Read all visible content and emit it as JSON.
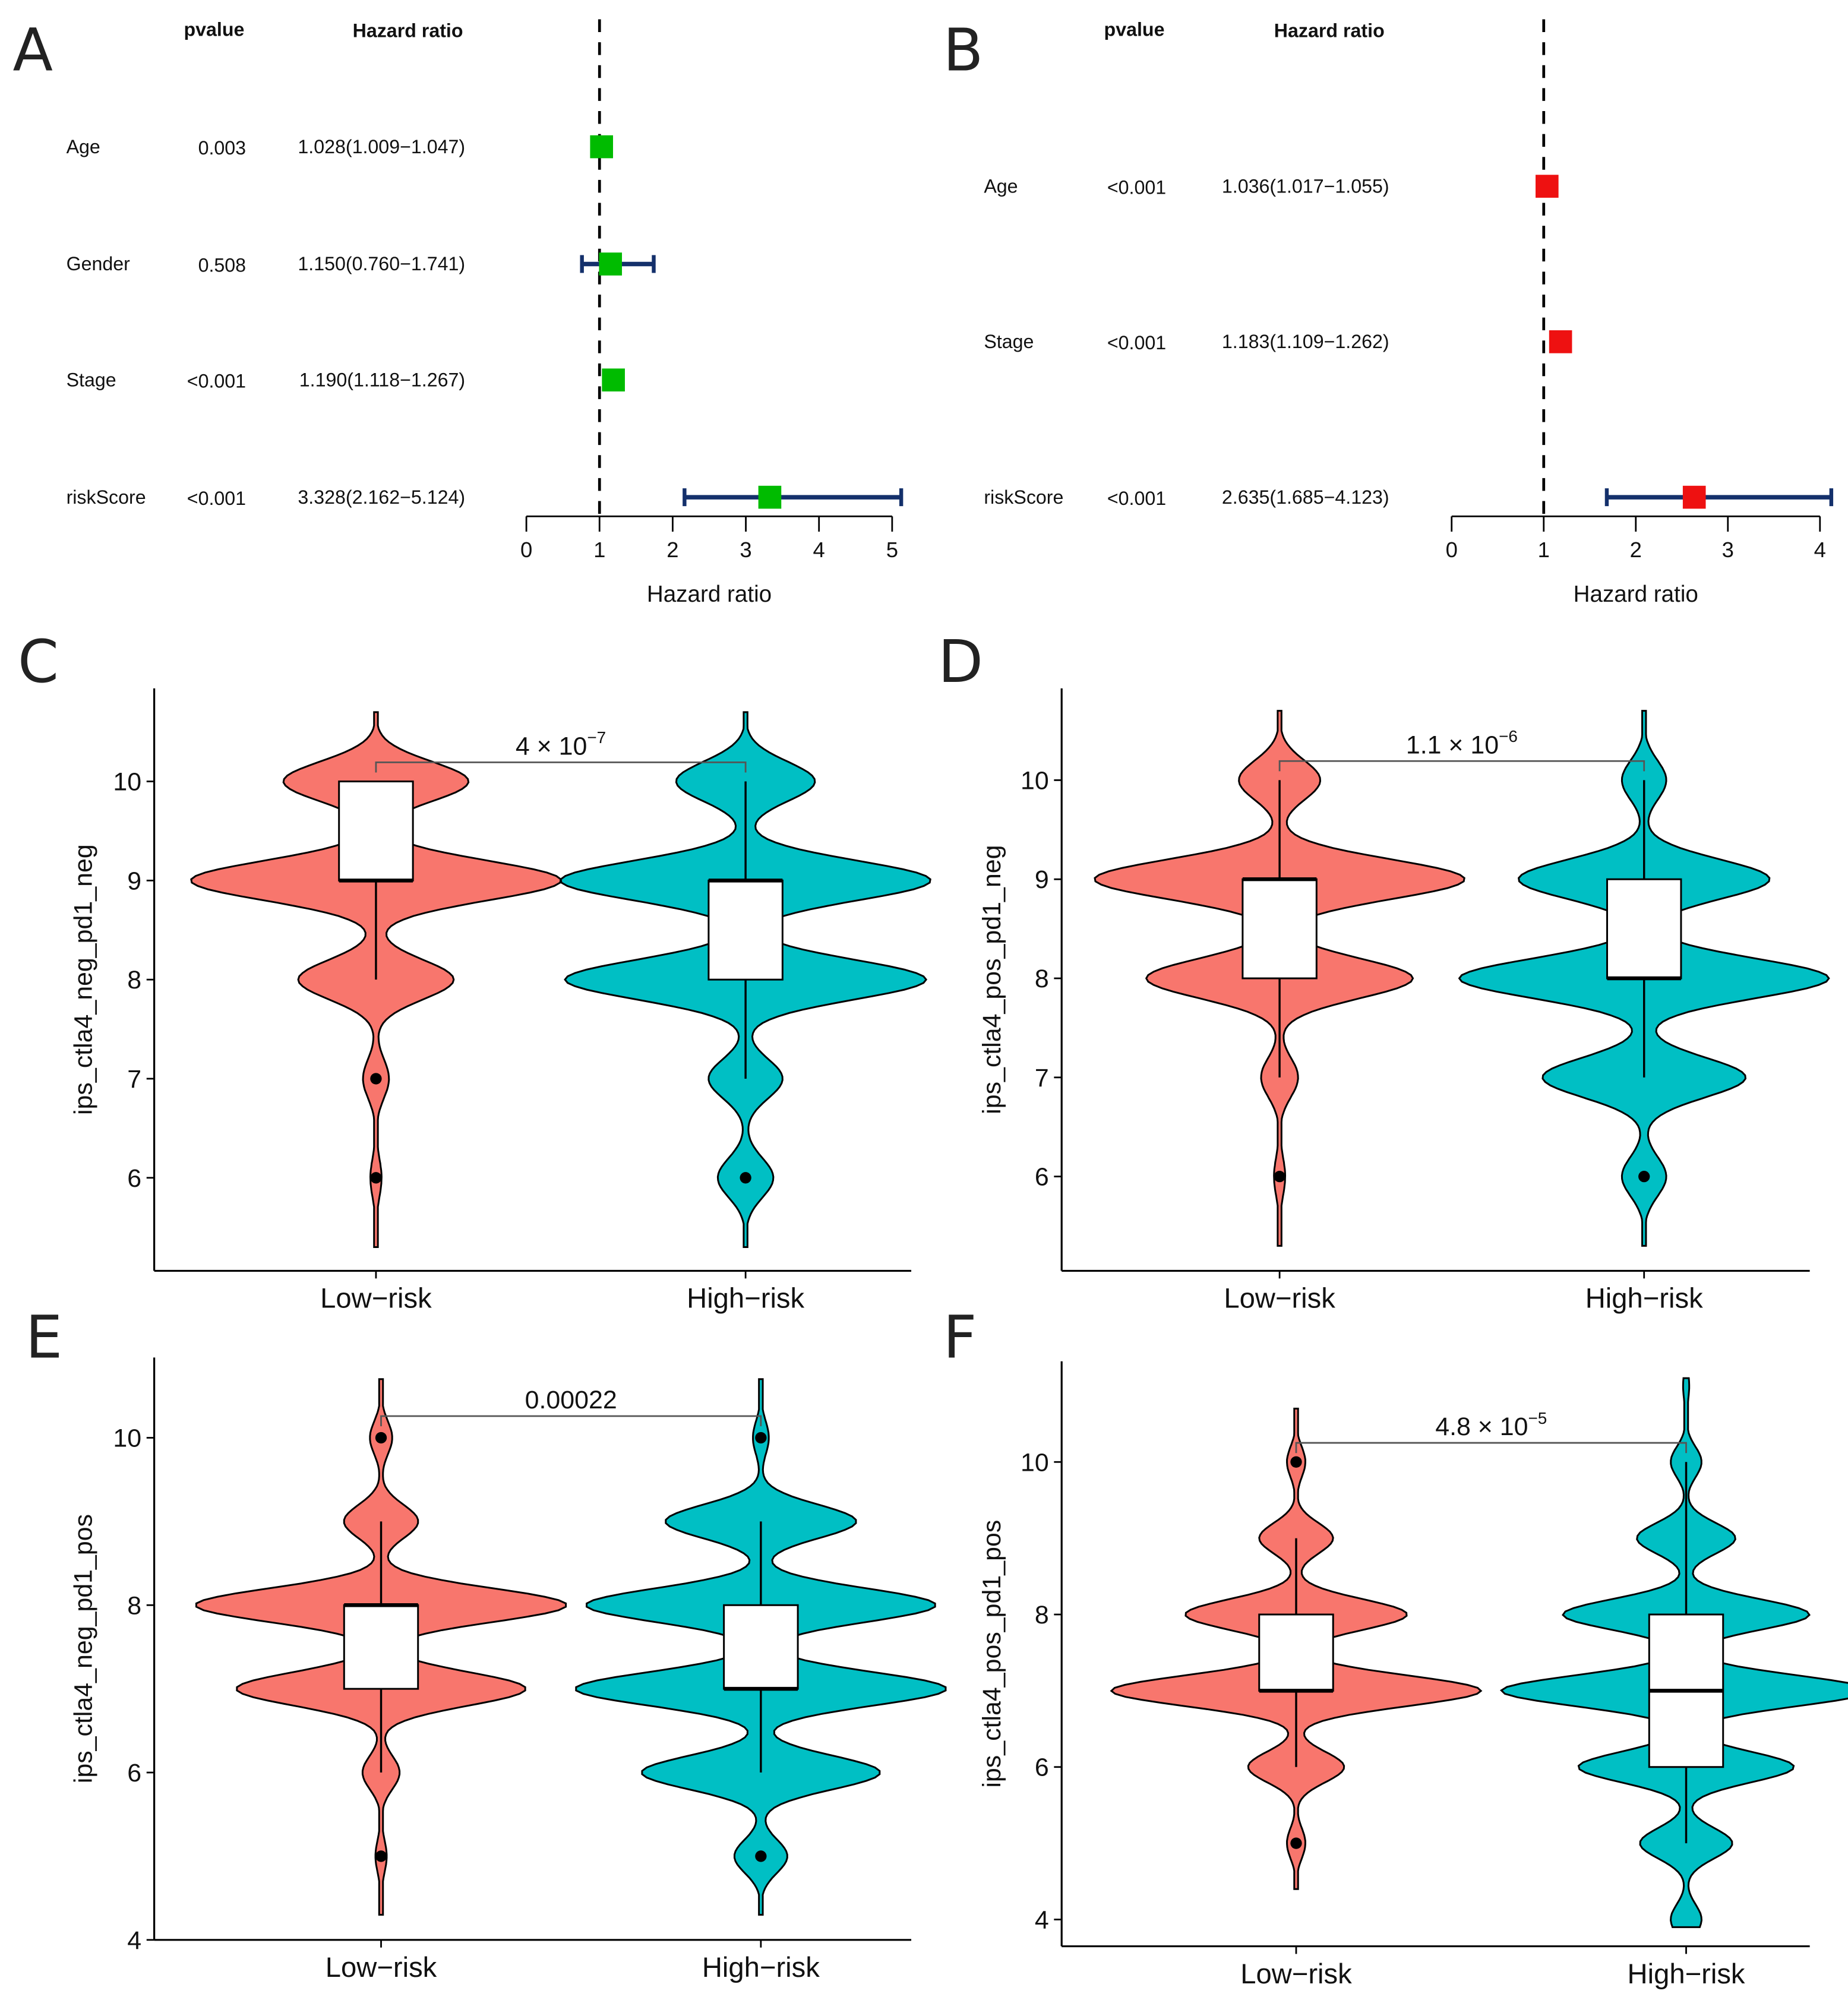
{
  "chart_data": [
    {
      "type": "forest",
      "panel": "A",
      "header_pvalue": "pvalue",
      "header_hr": "Hazard ratio",
      "xlabel": "Hazard ratio",
      "xlim": [
        0,
        5
      ],
      "xticks": [
        "0",
        "1",
        "2",
        "3",
        "4",
        "5"
      ],
      "reference_line": 1,
      "marker_color": "#00BB00",
      "rows": [
        {
          "label": "Age",
          "pvalue": "0.003",
          "hr_text": "1.028(1.009−1.047)",
          "hr": 1.028,
          "lo": 1.009,
          "hi": 1.047
        },
        {
          "label": "Gender",
          "pvalue": "0.508",
          "hr_text": "1.150(0.760−1.741)",
          "hr": 1.15,
          "lo": 0.76,
          "hi": 1.741
        },
        {
          "label": "Stage",
          "pvalue": "<0.001",
          "hr_text": "1.190(1.118−1.267)",
          "hr": 1.19,
          "lo": 1.118,
          "hi": 1.267
        },
        {
          "label": "riskScore",
          "pvalue": "<0.001",
          "hr_text": "3.328(2.162−5.124)",
          "hr": 3.328,
          "lo": 2.162,
          "hi": 5.124
        }
      ]
    },
    {
      "type": "forest",
      "panel": "B",
      "header_pvalue": "pvalue",
      "header_hr": "Hazard ratio",
      "xlabel": "Hazard ratio",
      "xlim": [
        0,
        4
      ],
      "xticks": [
        "0",
        "1",
        "2",
        "3",
        "4"
      ],
      "reference_line": 1,
      "marker_color": "#EE1111",
      "rows": [
        {
          "label": "Age",
          "pvalue": "<0.001",
          "hr_text": "1.036(1.017−1.055)",
          "hr": 1.036,
          "lo": 1.017,
          "hi": 1.055
        },
        {
          "label": "Stage",
          "pvalue": "<0.001",
          "hr_text": "1.183(1.109−1.262)",
          "hr": 1.183,
          "lo": 1.109,
          "hi": 1.262
        },
        {
          "label": "riskScore",
          "pvalue": "<0.001",
          "hr_text": "2.635(1.685−4.123)",
          "hr": 2.635,
          "lo": 1.685,
          "hi": 4.123
        }
      ]
    },
    {
      "type": "violin",
      "panel": "C",
      "ylabel": "ips_ctla4_neg_pd1_neg",
      "ylim": [
        5.0,
        10.9
      ],
      "yticks": [
        "6",
        "7",
        "8",
        "9",
        "10"
      ],
      "pvalue": {
        "mantissa": "4 × 10",
        "exponent": "−7"
      },
      "groups": [
        {
          "name": "Low−risk",
          "color": "#F8766D",
          "range": [
            5.3,
            10.7
          ],
          "density": {
            "6": 0.03,
            "7": 0.07,
            "8": 0.42,
            "9": 1.0,
            "10": 0.5
          },
          "q1": 9,
          "median": 9,
          "q3": 10,
          "whisker_lo": 8,
          "whisker_hi": 10,
          "outliers": [
            7,
            6
          ]
        },
        {
          "name": "High−risk",
          "color": "#00BFC4",
          "range": [
            5.3,
            10.7
          ],
          "density": {
            "6": 0.12,
            "7": 0.16,
            "8": 0.78,
            "9": 0.8,
            "10": 0.3
          },
          "q1": 8,
          "median": 9,
          "q3": 9,
          "whisker_lo": 7,
          "whisker_hi": 10,
          "outliers": [
            6
          ]
        }
      ]
    },
    {
      "type": "violin",
      "panel": "D",
      "ylabel": "ips_ctla4_pos_pd1_neg",
      "ylim": [
        5.0,
        10.9
      ],
      "yticks": [
        "6",
        "7",
        "8",
        "9",
        "10"
      ],
      "pvalue": {
        "mantissa": "1.1 × 10",
        "exponent": "−6"
      },
      "groups": [
        {
          "name": "Low−risk",
          "color": "#F8766D",
          "range": [
            5.3,
            10.7
          ],
          "density": {
            "6": 0.03,
            "7": 0.1,
            "8": 0.72,
            "9": 1.0,
            "10": 0.22
          },
          "q1": 8,
          "median": 9,
          "q3": 9,
          "whisker_lo": 7,
          "whisker_hi": 10,
          "outliers": [
            6
          ]
        },
        {
          "name": "High−risk",
          "color": "#00BFC4",
          "range": [
            5.3,
            10.7
          ],
          "density": {
            "6": 0.12,
            "7": 0.55,
            "8": 1.0,
            "9": 0.68,
            "10": 0.12
          },
          "q1": 8,
          "median": 8,
          "q3": 9,
          "whisker_lo": 7,
          "whisker_hi": 10,
          "outliers": [
            6
          ]
        }
      ]
    },
    {
      "type": "violin",
      "panel": "E",
      "ylabel": "ips_ctla4_neg_pd1_pos",
      "ylim": [
        4,
        11.0
      ],
      "yticks": [
        "4",
        "6",
        "8",
        "10"
      ],
      "pvalue": {
        "mantissa": "0.00022",
        "exponent": ""
      },
      "groups": [
        {
          "name": "Low−risk",
          "color": "#F8766D",
          "range": [
            4.3,
            10.7
          ],
          "density": {
            "5": 0.03,
            "6": 0.1,
            "7": 0.78,
            "8": 1.0,
            "9": 0.2,
            "10": 0.06
          },
          "q1": 7,
          "median": 8,
          "q3": 8,
          "whisker_lo": 6,
          "whisker_hi": 9,
          "outliers": [
            10,
            5
          ]
        },
        {
          "name": "High−risk",
          "color": "#00BFC4",
          "range": [
            4.3,
            10.7
          ],
          "density": {
            "5": 0.1,
            "6": 0.45,
            "7": 0.7,
            "8": 0.66,
            "9": 0.36,
            "10": 0.03
          },
          "q1": 7,
          "median": 7,
          "q3": 8,
          "whisker_lo": 6,
          "whisker_hi": 9,
          "outliers": [
            10,
            5
          ]
        }
      ]
    },
    {
      "type": "violin",
      "panel": "F",
      "ylabel": "ips_ctla4_pos_pd1_pos",
      "ylim": [
        3.6,
        11.3
      ],
      "yticks": [
        "4",
        "6",
        "8",
        "10"
      ],
      "pvalue": {
        "mantissa": "4.8 × 10",
        "exponent": "−5"
      },
      "groups": [
        {
          "name": "Low−risk",
          "color": "#F8766D",
          "range": [
            4.4,
            10.7
          ],
          "density": {
            "5": 0.05,
            "6": 0.26,
            "7": 1.0,
            "8": 0.6,
            "9": 0.2,
            "10": 0.05
          },
          "q1": 7,
          "median": 7,
          "q3": 8,
          "whisker_lo": 6,
          "whisker_hi": 9,
          "outliers": [
            10,
            5
          ]
        },
        {
          "name": "High−risk",
          "color": "#00BFC4",
          "range": [
            3.9,
            11.1
          ],
          "density": {
            "4": 0.05,
            "5": 0.15,
            "6": 0.35,
            "7": 0.6,
            "8": 0.4,
            "9": 0.16,
            "10": 0.05,
            "11": 0.01
          },
          "q1": 6,
          "median": 7,
          "q3": 8,
          "whisker_lo": 5,
          "whisker_hi": 10,
          "outliers": []
        }
      ]
    }
  ]
}
